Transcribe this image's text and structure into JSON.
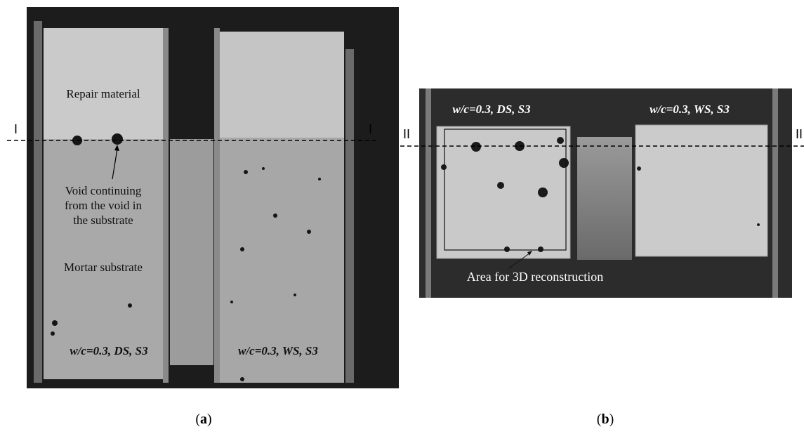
{
  "panel_a": {
    "section_left": "I",
    "section_right": "I",
    "repair_label": "Repair material",
    "void_label": [
      "Void continuing",
      "from the void in",
      "the substrate"
    ],
    "substrate_label": "Mortar substrate",
    "left_specimen": "w/c=0.3, DS, S3",
    "right_specimen": "w/c=0.3, WS, S3",
    "caption": [
      "(",
      "a",
      ")"
    ]
  },
  "panel_b": {
    "section_left": "II",
    "section_right": "II",
    "left_specimen": "w/c=0.3, DS, S3",
    "right_specimen": "w/c=0.3, WS, S3",
    "area_label": "Area for 3D reconstruction",
    "caption": [
      "(",
      "b",
      ")"
    ]
  }
}
